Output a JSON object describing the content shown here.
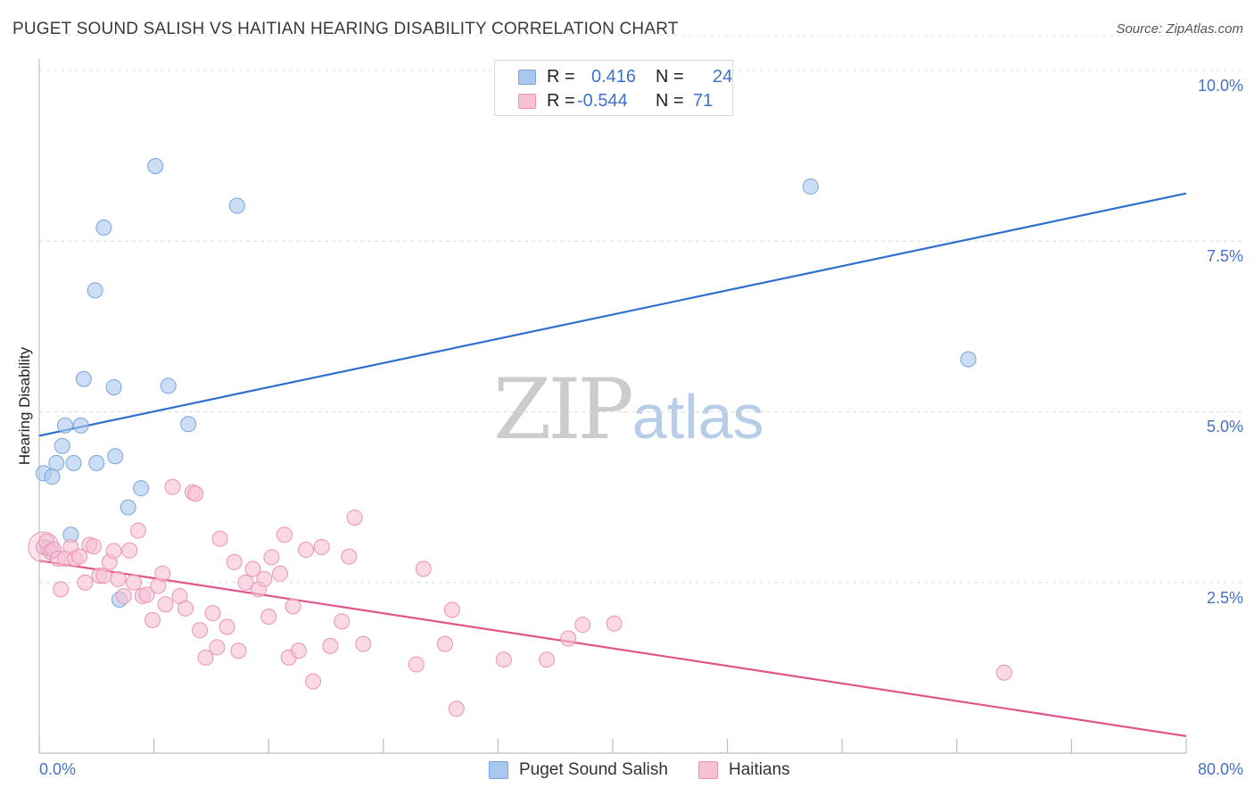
{
  "header": {
    "title": "PUGET SOUND SALISH VS HAITIAN HEARING DISABILITY CORRELATION CHART",
    "source": "Source: ZipAtlas.com"
  },
  "watermark": {
    "part1": "ZIP",
    "part2": "atlas"
  },
  "stats": {
    "rows": [
      {
        "r_label": "R =",
        "r_value": "0.416",
        "n_label": "N =",
        "n_value": "24",
        "color": "#a9c8f0",
        "border": "#7aa5dc"
      },
      {
        "r_label": "R =",
        "r_value": "-0.544",
        "n_label": "N =",
        "n_value": "71",
        "color": "#f7c0d3",
        "border": "#ec93b4"
      }
    ]
  },
  "legend": {
    "items": [
      {
        "label": "Puget Sound Salish",
        "color": "#a9c8f0",
        "border": "#7aa5dc"
      },
      {
        "label": "Haitians",
        "color": "#f7c0d3",
        "border": "#ec93b4"
      }
    ]
  },
  "chart_data": {
    "type": "scatter",
    "title": "PUGET SOUND SALISH VS HAITIAN HEARING DISABILITY CORRELATION CHART",
    "xlabel": "",
    "ylabel": "Hearing Disability",
    "xlim": [
      0,
      80
    ],
    "ylim": [
      0,
      10.5
    ],
    "x_tick_labels": [
      "0.0%",
      "80.0%"
    ],
    "y_ticks": [
      2.5,
      5.0,
      7.5,
      10.0
    ],
    "y_tick_labels": [
      "2.5%",
      "5.0%",
      "7.5%",
      "10.0%"
    ],
    "grid": "horizontal dashed",
    "legend_position": "bottom-center",
    "series": [
      {
        "name": "Puget Sound Salish",
        "color": "#a9c8f0",
        "edge": "#7aa5dc",
        "line_color": "#2f6fcf",
        "trend": [
          [
            0,
            4.65
          ],
          [
            80,
            8.2
          ]
        ],
        "points": [
          [
            0.3,
            4.1
          ],
          [
            0.9,
            4.05
          ],
          [
            0.6,
            3.0
          ],
          [
            1.2,
            4.25
          ],
          [
            1.6,
            4.5
          ],
          [
            1.8,
            4.8
          ],
          [
            2.2,
            3.2
          ],
          [
            2.4,
            4.25
          ],
          [
            2.9,
            4.8
          ],
          [
            3.1,
            5.48
          ],
          [
            4.0,
            4.25
          ],
          [
            4.5,
            7.7
          ],
          [
            3.9,
            6.78
          ],
          [
            5.2,
            5.36
          ],
          [
            5.3,
            4.35
          ],
          [
            5.6,
            2.25
          ],
          [
            6.2,
            3.6
          ],
          [
            7.1,
            3.88
          ],
          [
            8.1,
            8.6
          ],
          [
            9.0,
            5.38
          ],
          [
            10.4,
            4.82
          ],
          [
            13.8,
            8.02
          ],
          [
            53.8,
            8.3
          ],
          [
            64.8,
            5.77
          ]
        ]
      },
      {
        "name": "Haitians",
        "color": "#f7c0d3",
        "edge": "#ec93b4",
        "line_color": "#e0558a",
        "trend": [
          [
            0,
            2.82
          ],
          [
            80,
            0.25
          ]
        ],
        "points": [
          [
            0.3,
            3.02
          ],
          [
            0.5,
            3.1
          ],
          [
            0.8,
            2.95
          ],
          [
            1.0,
            2.98
          ],
          [
            1.3,
            2.85
          ],
          [
            1.5,
            2.4
          ],
          [
            1.8,
            2.85
          ],
          [
            2.2,
            3.02
          ],
          [
            2.5,
            2.85
          ],
          [
            2.8,
            2.88
          ],
          [
            3.2,
            2.5
          ],
          [
            3.5,
            3.05
          ],
          [
            3.8,
            3.03
          ],
          [
            4.2,
            2.6
          ],
          [
            4.5,
            2.6
          ],
          [
            4.9,
            2.8
          ],
          [
            5.2,
            2.96
          ],
          [
            5.5,
            2.55
          ],
          [
            5.9,
            2.3
          ],
          [
            6.3,
            2.97
          ],
          [
            6.6,
            2.5
          ],
          [
            6.9,
            3.26
          ],
          [
            7.2,
            2.3
          ],
          [
            7.5,
            2.32
          ],
          [
            7.9,
            1.95
          ],
          [
            8.3,
            2.45
          ],
          [
            8.6,
            2.63
          ],
          [
            8.8,
            2.18
          ],
          [
            9.3,
            3.9
          ],
          [
            9.8,
            2.3
          ],
          [
            10.2,
            2.12
          ],
          [
            10.7,
            3.82
          ],
          [
            10.9,
            3.8
          ],
          [
            11.2,
            1.8
          ],
          [
            11.6,
            1.4
          ],
          [
            12.1,
            2.05
          ],
          [
            12.4,
            1.55
          ],
          [
            12.6,
            3.14
          ],
          [
            13.1,
            1.85
          ],
          [
            13.6,
            2.8
          ],
          [
            13.9,
            1.5
          ],
          [
            14.4,
            2.5
          ],
          [
            14.9,
            2.7
          ],
          [
            15.3,
            2.4
          ],
          [
            15.7,
            2.55
          ],
          [
            16.0,
            2.0
          ],
          [
            16.2,
            2.87
          ],
          [
            16.8,
            2.63
          ],
          [
            17.1,
            3.2
          ],
          [
            17.4,
            1.4
          ],
          [
            17.7,
            2.15
          ],
          [
            18.1,
            1.5
          ],
          [
            18.6,
            2.98
          ],
          [
            19.1,
            1.05
          ],
          [
            19.7,
            3.02
          ],
          [
            20.3,
            1.57
          ],
          [
            21.1,
            1.93
          ],
          [
            21.6,
            2.88
          ],
          [
            22.0,
            3.45
          ],
          [
            22.6,
            1.6
          ],
          [
            26.3,
            1.3
          ],
          [
            26.8,
            2.7
          ],
          [
            28.3,
            1.6
          ],
          [
            28.8,
            2.1
          ],
          [
            29.1,
            0.65
          ],
          [
            32.4,
            1.37
          ],
          [
            35.4,
            1.37
          ],
          [
            36.9,
            1.68
          ],
          [
            37.9,
            1.88
          ],
          [
            40.1,
            1.9
          ],
          [
            67.3,
            1.18
          ]
        ]
      }
    ]
  }
}
